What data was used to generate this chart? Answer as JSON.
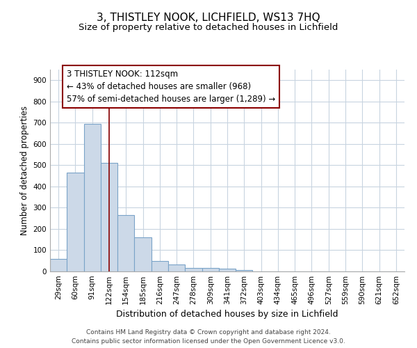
{
  "title1": "3, THISTLEY NOOK, LICHFIELD, WS13 7HQ",
  "title2": "Size of property relative to detached houses in Lichfield",
  "xlabel": "Distribution of detached houses by size in Lichfield",
  "ylabel": "Number of detached properties",
  "categories": [
    "29sqm",
    "60sqm",
    "91sqm",
    "122sqm",
    "154sqm",
    "185sqm",
    "216sqm",
    "247sqm",
    "278sqm",
    "309sqm",
    "341sqm",
    "372sqm",
    "403sqm",
    "434sqm",
    "465sqm",
    "496sqm",
    "527sqm",
    "559sqm",
    "590sqm",
    "621sqm",
    "652sqm"
  ],
  "values": [
    60,
    465,
    695,
    510,
    265,
    160,
    48,
    32,
    18,
    15,
    12,
    5,
    0,
    0,
    0,
    0,
    0,
    0,
    0,
    0,
    0
  ],
  "bar_color": "#ccd9e8",
  "bar_edge_color": "#7aa3c8",
  "vline_x": 3.0,
  "vline_color": "#8b0000",
  "annotation_text": "3 THISTLEY NOOK: 112sqm\n← 43% of detached houses are smaller (968)\n57% of semi-detached houses are larger (1,289) →",
  "annotation_box_color": "#8b0000",
  "ylim": [
    0,
    950
  ],
  "yticks": [
    0,
    100,
    200,
    300,
    400,
    500,
    600,
    700,
    800,
    900
  ],
  "footnote1": "Contains HM Land Registry data © Crown copyright and database right 2024.",
  "footnote2": "Contains public sector information licensed under the Open Government Licence v3.0.",
  "bg_color": "#ffffff",
  "grid_color": "#c8d4e0",
  "title1_fontsize": 11,
  "title2_fontsize": 9.5,
  "xlabel_fontsize": 9,
  "ylabel_fontsize": 8.5,
  "tick_fontsize": 7.5,
  "annotation_fontsize": 8.5,
  "footnote_fontsize": 6.5
}
